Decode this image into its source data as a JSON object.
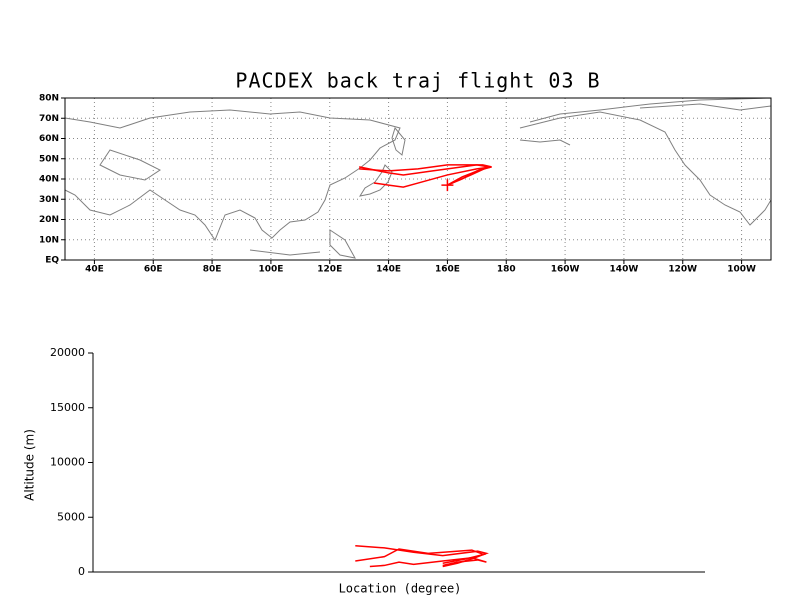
{
  "chart_data": [
    {
      "type": "map",
      "title": "PACDEX back traj flight 03 B",
      "xlim": [
        30,
        270
      ],
      "ylim": [
        0,
        80
      ],
      "grid": true,
      "xticks": [
        {
          "value": 40,
          "label": "40E"
        },
        {
          "value": 60,
          "label": "60E"
        },
        {
          "value": 80,
          "label": "80E"
        },
        {
          "value": 100,
          "label": "100E"
        },
        {
          "value": 120,
          "label": "120E"
        },
        {
          "value": 140,
          "label": "140E"
        },
        {
          "value": 160,
          "label": "160E"
        },
        180,
        {
          "value": 200,
          "label": "160W"
        },
        {
          "value": 220,
          "label": "140W"
        },
        {
          "value": 240,
          "label": "120W"
        },
        {
          "value": 260,
          "label": "100W"
        }
      ],
      "yticks": [
        {
          "value": 0,
          "label": "EQ"
        },
        {
          "value": 10,
          "label": "10N"
        },
        {
          "value": 20,
          "label": "20N"
        },
        {
          "value": 30,
          "label": "30N"
        },
        {
          "value": 40,
          "label": "40N"
        },
        {
          "value": 50,
          "label": "50N"
        },
        {
          "value": 60,
          "label": "60N"
        },
        {
          "value": 70,
          "label": "70N"
        },
        {
          "value": 80,
          "label": "80N"
        }
      ],
      "series": [
        {
          "color": "#ff0000",
          "x": [
            160,
            165,
            170,
            175,
            172,
            160,
            150,
            140,
            130
          ],
          "values": [
            37,
            40,
            44,
            46,
            47,
            47,
            45,
            44,
            45
          ]
        },
        {
          "color": "#ff0000",
          "x": [
            160,
            165,
            172,
            175,
            170,
            160,
            150,
            145,
            140,
            135
          ],
          "values": [
            37,
            41,
            45,
            46,
            45,
            42,
            38,
            36,
            37,
            38
          ]
        },
        {
          "color": "#ff0000",
          "x": [
            160,
            168,
            174,
            170,
            155,
            145,
            140,
            130
          ],
          "values": [
            37,
            42,
            46,
            47,
            44,
            42,
            43,
            46
          ]
        }
      ]
    },
    {
      "type": "line",
      "ylabel": "Altitude (m)",
      "xlabel": "Location (degree)",
      "xlim": [
        40,
        250
      ],
      "ylim": [
        0,
        20000
      ],
      "yticks": [
        0,
        5000,
        10000,
        15000,
        20000
      ],
      "grid": false,
      "series": [
        {
          "color": "#ff0000",
          "x": [
            160,
            165,
            170,
            175,
            172,
            160,
            150,
            140,
            130
          ],
          "values": [
            500,
            800,
            1200,
            1700,
            1900,
            1500,
            1800,
            2200,
            2400
          ]
        },
        {
          "color": "#ff0000",
          "x": [
            160,
            165,
            172,
            175,
            170,
            160,
            150,
            145,
            140,
            135
          ],
          "values": [
            600,
            900,
            1100,
            900,
            1300,
            1000,
            700,
            900,
            600,
            500
          ]
        },
        {
          "color": "#ff0000",
          "x": [
            160,
            168,
            174,
            170,
            155,
            145,
            140,
            130
          ],
          "values": [
            800,
            1200,
            1600,
            2000,
            1700,
            2100,
            1400,
            1000
          ]
        }
      ]
    }
  ]
}
